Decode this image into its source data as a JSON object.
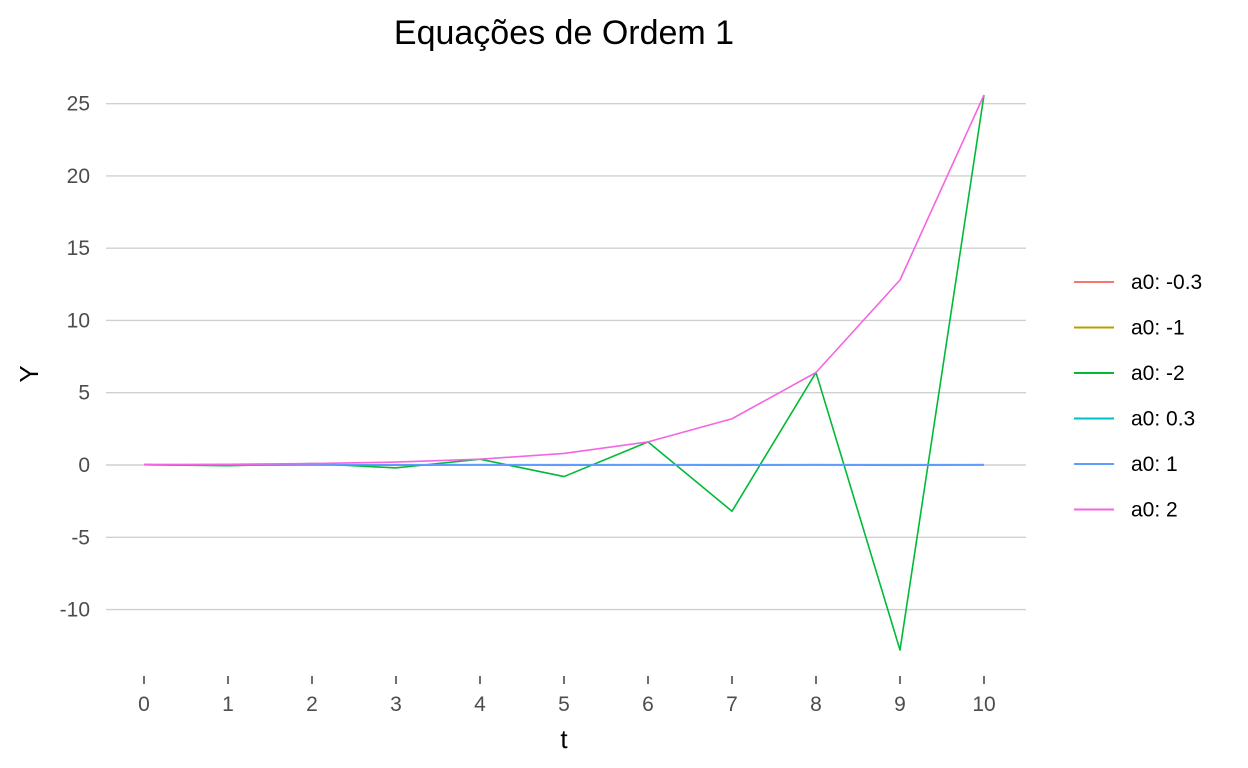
{
  "chart_data": {
    "type": "line",
    "title": "Equações de Ordem 1",
    "xlabel": "t",
    "ylabel": "Y",
    "x": [
      0,
      1,
      2,
      3,
      4,
      5,
      6,
      7,
      8,
      9,
      10
    ],
    "xlim": [
      0,
      10
    ],
    "ylim": [
      -12.8,
      25.6
    ],
    "xticks": [
      0,
      1,
      2,
      3,
      4,
      5,
      6,
      7,
      8,
      9,
      10
    ],
    "yticks": [
      -10,
      -5,
      0,
      5,
      10,
      15,
      20,
      25
    ],
    "grid": true,
    "legend_position": "right",
    "series": [
      {
        "name": "a0: -0.3",
        "color": "#F8766D",
        "values": [
          0.025,
          -0.0075,
          0.00225,
          -0.000675,
          0.0002,
          -6e-05,
          2e-05,
          -5e-06,
          2e-06,
          0,
          0
        ]
      },
      {
        "name": "a0: -1",
        "color": "#B79F00",
        "values": [
          0.025,
          -0.025,
          0.025,
          -0.025,
          0.025,
          -0.025,
          0.025,
          -0.025,
          0.025,
          -0.025,
          0.025
        ]
      },
      {
        "name": "a0: -2",
        "color": "#00BA38",
        "values": [
          0.025,
          -0.05,
          0.1,
          -0.2,
          0.4,
          -0.8,
          1.6,
          -3.2,
          6.4,
          -12.8,
          25.6
        ]
      },
      {
        "name": "a0: 0.3",
        "color": "#00BFC4",
        "values": [
          0.025,
          0.0075,
          0.00225,
          0.000675,
          0.0002,
          6e-05,
          2e-05,
          5e-06,
          2e-06,
          0,
          0
        ]
      },
      {
        "name": "a0: 1",
        "color": "#619CFF",
        "values": [
          0.025,
          0.025,
          0.025,
          0.025,
          0.025,
          0.025,
          0.025,
          0.025,
          0.025,
          0.025,
          0.025
        ]
      },
      {
        "name": "a0: 2",
        "color": "#F564E3",
        "values": [
          0.025,
          0.05,
          0.1,
          0.2,
          0.4,
          0.8,
          1.6,
          3.2,
          6.4,
          12.8,
          25.6
        ]
      }
    ]
  }
}
